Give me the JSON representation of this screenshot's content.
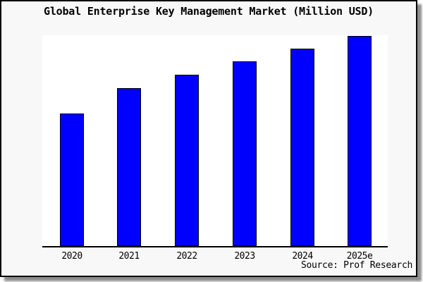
{
  "window": {
    "frame_background": "#f8f8f8",
    "frame_border_color": "#000000",
    "shadow_color": "#8e8e8e",
    "plot_background": "#ffffff"
  },
  "chart_data": {
    "type": "bar",
    "title": "Global Enterprise Key Management Market (Million USD)",
    "source": "Source: Prof Research",
    "categories": [
      "2020",
      "2021",
      "2022",
      "2023",
      "2024",
      "2025e"
    ],
    "values": [
      189,
      226,
      245,
      264,
      282,
      300
    ],
    "value_note": "relative units estimated from bar pixel heights; no y-axis scale shown",
    "xlabel": "",
    "ylabel": "",
    "yticks": [],
    "ylim": [
      0,
      301
    ],
    "grid": false,
    "legend": false,
    "bar_color": "#0000ff",
    "bar_border_color": "#000000",
    "axis_color": "#000000"
  }
}
